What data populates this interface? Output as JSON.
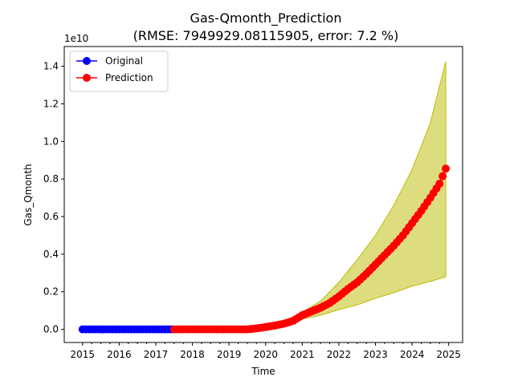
{
  "chart_data": {
    "type": "line",
    "title": "Gas-Qmonth_Prediction",
    "subtitle": "(RMSE: 7949929.08115905, error: 7.2 %)",
    "xlabel": "Time",
    "ylabel": "Gas_Qmonth",
    "y_scale_label": "1e10",
    "xlim": [
      2014.5,
      2025.38
    ],
    "ylim": [
      -0.07,
      1.505
    ],
    "x_ticks": [
      2015,
      2016,
      2017,
      2018,
      2019,
      2020,
      2021,
      2022,
      2023,
      2024,
      2025
    ],
    "y_ticks": [
      "0.0",
      "0.2",
      "0.4",
      "0.6",
      "0.8",
      "1.0",
      "1.2",
      "1.4"
    ],
    "legend_position": "upper-left",
    "grid": false,
    "colors": {
      "original": "#0000ff",
      "prediction": "#ff0000",
      "band": "#bcbc00"
    },
    "series": [
      {
        "name": "Original",
        "range": {
          "start": 2015.0,
          "end": 2017.45,
          "step": 0.0833
        },
        "values_y": "zero"
      },
      {
        "name": "Prediction",
        "x": [
          2017.5,
          2018.0,
          2018.5,
          2019.0,
          2019.5,
          2019.75,
          2020.0,
          2020.25,
          2020.5,
          2020.75,
          2021.0,
          2021.25,
          2021.5,
          2021.75,
          2022.0,
          2022.25,
          2022.5,
          2022.75,
          2023.0,
          2023.25,
          2023.5,
          2023.75,
          2024.0,
          2024.25,
          2024.5,
          2024.75,
          2024.92
        ],
        "y": [
          0.0,
          0.0,
          0.0,
          0.0,
          0.0,
          0.005,
          0.012,
          0.02,
          0.03,
          0.045,
          0.075,
          0.095,
          0.115,
          0.14,
          0.175,
          0.215,
          0.25,
          0.295,
          0.345,
          0.395,
          0.445,
          0.5,
          0.565,
          0.63,
          0.7,
          0.775,
          0.855
        ]
      }
    ],
    "confidence_band": {
      "x": [
        2019.5,
        2020.0,
        2020.5,
        2021.0,
        2021.5,
        2022.0,
        2022.5,
        2023.0,
        2023.5,
        2024.0,
        2024.5,
        2024.92
      ],
      "upper": [
        0.0,
        0.015,
        0.04,
        0.09,
        0.15,
        0.25,
        0.37,
        0.5,
        0.66,
        0.85,
        1.1,
        1.425
      ],
      "lower": [
        0.0,
        0.01,
        0.03,
        0.055,
        0.075,
        0.105,
        0.13,
        0.165,
        0.195,
        0.23,
        0.255,
        0.28
      ]
    }
  }
}
